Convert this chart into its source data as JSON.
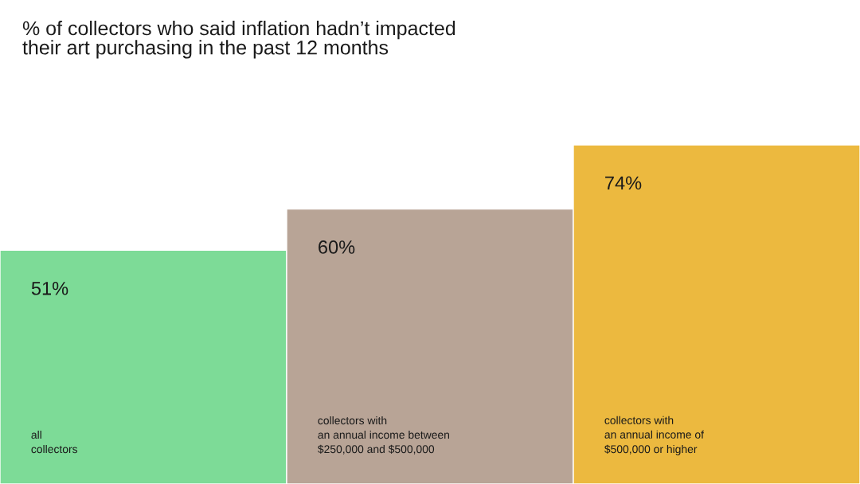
{
  "chart_data": {
    "type": "bar",
    "title": "% of collectors who said inflation hadn’t impacted\ntheir art purchasing in the past 12 months",
    "categories": [
      "all\ncollectors",
      "collectors with\nan annual income between\n$250,000 and $500,000",
      "collectors with\nan annual income of\n$500,000 or higher"
    ],
    "values": [
      51,
      60,
      74
    ],
    "value_labels": [
      "51%",
      "60%",
      "74%"
    ],
    "colors": [
      "#7ddb97",
      "#b8a496",
      "#ecb93f"
    ]
  }
}
